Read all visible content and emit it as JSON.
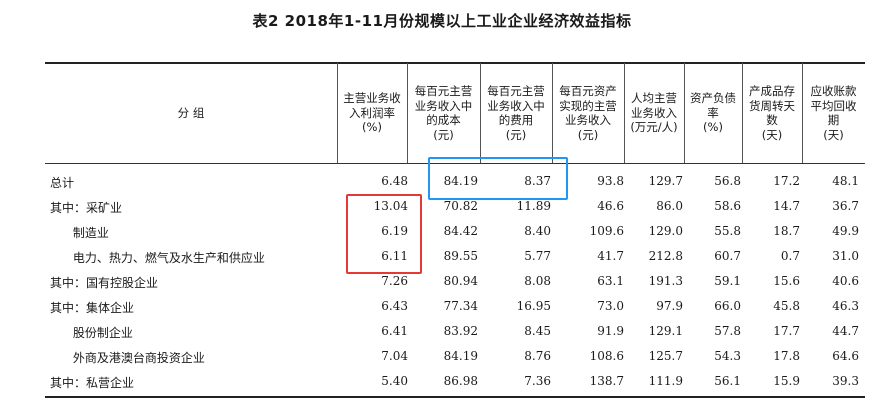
{
  "title": "表2  2018年1-11月份规模以上工业企业经济效益指标",
  "headers": [
    "分    组",
    "主营业务收\n入利润率\n(%)",
    "每百元主营\n业务收入中\n的成本\n(元)",
    "每百元主营\n业务收入中\n的费用\n(元)",
    "每百元资产\n实现的主营\n业务收入\n(元)",
    "人均主营\n业务收入\n(万元/人)",
    "资产负债\n率\n(%)",
    "产成品存\n货周转天\n数\n(天)",
    "应收账款\n平均回收\n期\n(天)"
  ],
  "rows": [
    {
      "label": "总计",
      "values": [
        "6.48",
        "84.19",
        "8.37",
        "93.8",
        "129.7",
        "56.8",
        "17.2",
        "48.1"
      ]
    },
    {
      "label": "其中：采矿业",
      "values": [
        "13.04",
        "70.82",
        "11.89",
        "46.6",
        "86.0",
        "58.6",
        "14.7",
        "36.7"
      ]
    },
    {
      "label": "      制造业",
      "values": [
        "6.19",
        "84.42",
        "8.40",
        "109.6",
        "129.0",
        "55.8",
        "18.7",
        "49.9"
      ]
    },
    {
      "label": "      电力、热力、燃气及水生产和供应业",
      "values": [
        "6.11",
        "89.55",
        "5.77",
        "41.7",
        "212.8",
        "60.7",
        "0.7",
        "31.0"
      ]
    },
    {
      "label": "其中：国有控股企业",
      "values": [
        "7.26",
        "80.94",
        "8.08",
        "63.1",
        "191.3",
        "59.1",
        "15.6",
        "40.6"
      ]
    },
    {
      "label": "其中：集体企业",
      "values": [
        "6.43",
        "77.34",
        "16.95",
        "73.0",
        "97.9",
        "66.0",
        "45.8",
        "46.3"
      ]
    },
    {
      "label": "      股份制企业",
      "values": [
        "6.41",
        "83.92",
        "8.45",
        "91.9",
        "129.1",
        "57.8",
        "17.7",
        "44.7"
      ]
    },
    {
      "label": "      外商及港澳台商投资企业",
      "values": [
        "7.04",
        "84.19",
        "8.76",
        "108.6",
        "125.7",
        "54.3",
        "17.8",
        "64.6"
      ]
    },
    {
      "label": "其中：私营企业",
      "values": [
        "5.40",
        "86.98",
        "7.36",
        "138.7",
        "111.9",
        "56.1",
        "15.9",
        "39.3"
      ]
    }
  ],
  "highlights": {
    "red_color": "#e53935",
    "blue_color": "#2196f3"
  }
}
